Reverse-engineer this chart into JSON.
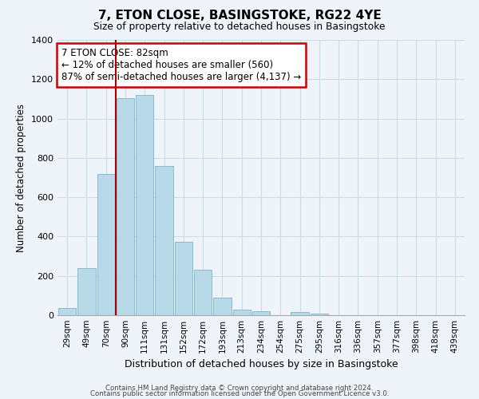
{
  "title": "7, ETON CLOSE, BASINGSTOKE, RG22 4YE",
  "subtitle": "Size of property relative to detached houses in Basingstoke",
  "xlabel": "Distribution of detached houses by size in Basingstoke",
  "ylabel": "Number of detached properties",
  "bar_labels": [
    "29sqm",
    "49sqm",
    "70sqm",
    "90sqm",
    "111sqm",
    "131sqm",
    "152sqm",
    "172sqm",
    "193sqm",
    "213sqm",
    "234sqm",
    "254sqm",
    "275sqm",
    "295sqm",
    "316sqm",
    "336sqm",
    "357sqm",
    "377sqm",
    "398sqm",
    "418sqm",
    "439sqm"
  ],
  "bar_values": [
    35,
    240,
    720,
    1105,
    1120,
    760,
    375,
    230,
    90,
    30,
    20,
    0,
    15,
    10,
    0,
    0,
    0,
    0,
    0,
    0,
    0
  ],
  "bar_color": "#b8d9e8",
  "bar_edge_color": "#7ab5cc",
  "grid_color": "#ccdde8",
  "background_color": "#eef4fa",
  "vline_color": "#aa0000",
  "annotation_title": "7 ETON CLOSE: 82sqm",
  "annotation_line1": "← 12% of detached houses are smaller (560)",
  "annotation_line2": "87% of semi-detached houses are larger (4,137) →",
  "annotation_box_color": "#ffffff",
  "annotation_box_edge": "#cc0000",
  "ylim": [
    0,
    1400
  ],
  "yticks": [
    0,
    200,
    400,
    600,
    800,
    1000,
    1200,
    1400
  ],
  "footer_line1": "Contains HM Land Registry data © Crown copyright and database right 2024.",
  "footer_line2": "Contains public sector information licensed under the Open Government Licence v3.0."
}
